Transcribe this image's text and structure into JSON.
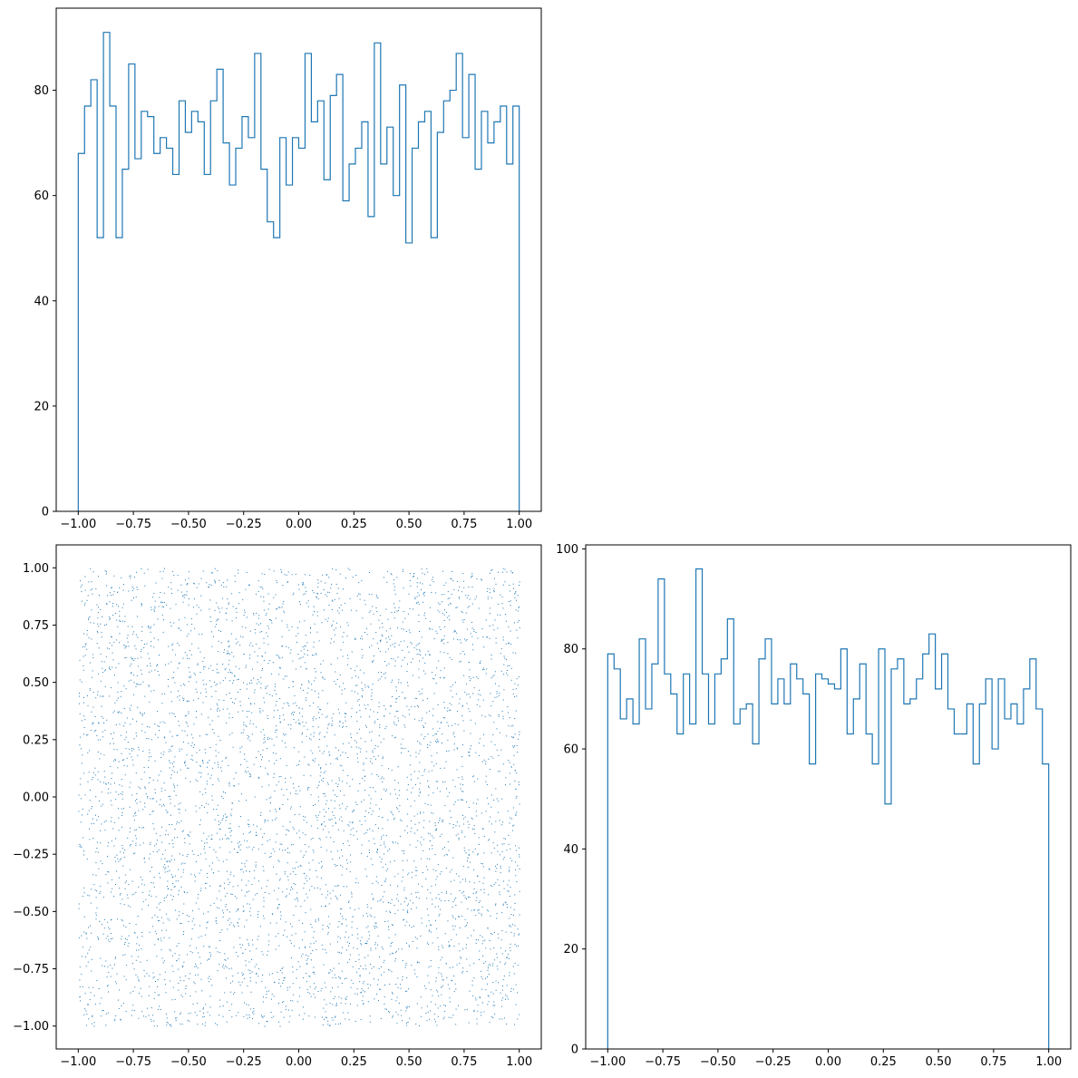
{
  "colors": {
    "series": "#1f77b4",
    "axes": "#000000",
    "background": "#ffffff"
  },
  "chart_data": [
    {
      "id": "top-left-histogram",
      "type": "histogram",
      "histtype": "step",
      "title": "",
      "xlabel": "",
      "ylabel": "",
      "xlim": [
        -1.1,
        1.1
      ],
      "ylim": [
        0,
        95.6
      ],
      "xticks": [
        -1.0,
        -0.75,
        -0.5,
        -0.25,
        0.0,
        0.25,
        0.5,
        0.75,
        1.0
      ],
      "xtick_labels": [
        "−1.00",
        "−0.75",
        "−0.50",
        "−0.25",
        "0.00",
        "0.25",
        "0.50",
        "0.75",
        "1.00"
      ],
      "yticks": [
        0,
        20,
        40,
        60,
        80
      ],
      "ytick_labels": [
        "0",
        "20",
        "40",
        "60",
        "80"
      ],
      "bin_range": [
        -1.0,
        1.0
      ],
      "counts": [
        68,
        77,
        82,
        52,
        91,
        77,
        52,
        65,
        85,
        67,
        76,
        75,
        68,
        71,
        69,
        64,
        78,
        72,
        76,
        74,
        64,
        78,
        84,
        70,
        62,
        69,
        75,
        71,
        87,
        65,
        55,
        52,
        71,
        62,
        71,
        69,
        87,
        74,
        78,
        63,
        79,
        83,
        59,
        66,
        69,
        74,
        56,
        89,
        66,
        73,
        60,
        81,
        51,
        69,
        74,
        76,
        52,
        72,
        78,
        80,
        87,
        71,
        83,
        65,
        76,
        70,
        74,
        77,
        66,
        77
      ]
    },
    {
      "id": "bottom-left-scatter",
      "type": "scatter",
      "title": "",
      "xlabel": "",
      "ylabel": "",
      "marker": "pixel",
      "distribution": "uniform",
      "n_points": 5000,
      "x_range": [
        -1.0,
        1.0
      ],
      "y_range": [
        -1.0,
        1.0
      ],
      "xlim": [
        -1.1,
        1.1
      ],
      "ylim": [
        -1.1,
        1.1
      ],
      "xticks": [
        -1.0,
        -0.75,
        -0.5,
        -0.25,
        0.0,
        0.25,
        0.5,
        0.75,
        1.0
      ],
      "xtick_labels": [
        "−1.00",
        "−0.75",
        "−0.50",
        "−0.25",
        "0.00",
        "0.25",
        "0.50",
        "0.75",
        "1.00"
      ],
      "yticks": [
        -1.0,
        -0.75,
        -0.5,
        -0.25,
        0.0,
        0.25,
        0.5,
        0.75,
        1.0
      ],
      "ytick_labels": [
        "−1.00",
        "−0.75",
        "−0.50",
        "−0.25",
        "0.00",
        "0.25",
        "0.50",
        "0.75",
        "1.00"
      ]
    },
    {
      "id": "bottom-right-histogram",
      "type": "histogram",
      "histtype": "step",
      "title": "",
      "xlabel": "",
      "ylabel": "",
      "xlim": [
        -1.1,
        1.1
      ],
      "ylim": [
        0,
        100.8
      ],
      "xticks": [
        -1.0,
        -0.75,
        -0.5,
        -0.25,
        0.0,
        0.25,
        0.5,
        0.75,
        1.0
      ],
      "xtick_labels": [
        "−1.00",
        "−0.75",
        "−0.50",
        "−0.25",
        "0.00",
        "0.25",
        "0.50",
        "0.75",
        "1.00"
      ],
      "yticks": [
        0,
        20,
        40,
        60,
        80,
        100
      ],
      "ytick_labels": [
        "0",
        "20",
        "40",
        "60",
        "80",
        "100"
      ],
      "bin_range": [
        -1.0,
        1.0
      ],
      "counts": [
        79,
        76,
        66,
        70,
        65,
        82,
        68,
        77,
        94,
        75,
        71,
        63,
        75,
        65,
        96,
        75,
        65,
        75,
        78,
        86,
        65,
        68,
        69,
        61,
        78,
        82,
        69,
        74,
        69,
        77,
        74,
        71,
        57,
        75,
        74,
        73,
        72,
        80,
        63,
        70,
        77,
        63,
        57,
        80,
        49,
        76,
        78,
        69,
        70,
        74,
        79,
        83,
        72,
        79,
        68,
        63,
        63,
        69,
        57,
        69,
        74,
        60,
        74,
        66,
        69,
        65,
        72,
        78,
        68,
        57
      ]
    }
  ]
}
